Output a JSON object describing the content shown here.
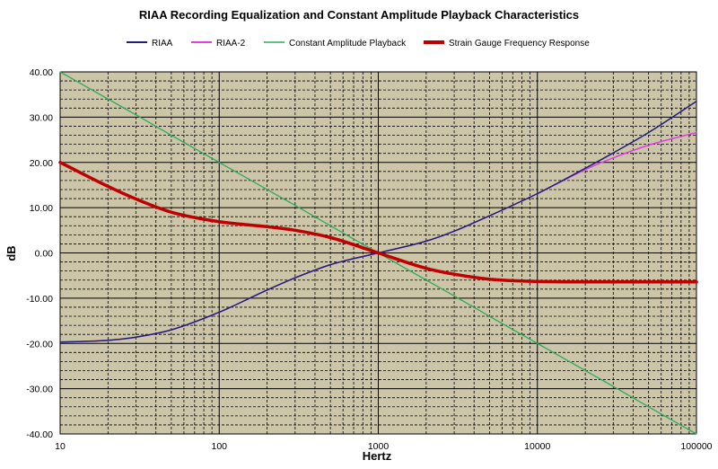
{
  "chart_data": {
    "type": "line",
    "title": "RIAA Recording Equalization and Constant Amplitude  Playback Characteristics",
    "xlabel": "Hertz",
    "ylabel": "dB",
    "x_scale": "log",
    "xlim": [
      10,
      100000
    ],
    "ylim": [
      -40,
      40
    ],
    "grid": true,
    "legend_position": "top",
    "plot_background": "#CCC5A8",
    "x_ticks": [
      "10",
      "100",
      "1000",
      "10000",
      "100000"
    ],
    "y_ticks": [
      "40.00",
      "30.00",
      "20.00",
      "10.00",
      "0.00",
      "-10.00",
      "-20.00",
      "-30.00",
      "-40.00"
    ],
    "x": [
      10,
      20,
      30,
      50,
      100,
      200,
      300,
      500,
      1000,
      2000,
      3000,
      5000,
      10000,
      20000,
      30000,
      50000,
      100000
    ],
    "series": [
      {
        "name": "RIAA",
        "color": "#1F1F7A",
        "values": [
          -19.7,
          -19.3,
          -18.6,
          -17.0,
          -13.1,
          -8.2,
          -5.5,
          -2.6,
          0.0,
          2.6,
          4.8,
          8.2,
          13.1,
          18.7,
          22.1,
          26.6,
          33.5
        ]
      },
      {
        "name": "RIAA-2",
        "color": "#E040E0",
        "values": [
          -19.7,
          -19.3,
          -18.6,
          -17.0,
          -13.1,
          -8.2,
          -5.5,
          -2.6,
          0.0,
          2.6,
          4.8,
          8.2,
          13.1,
          18.4,
          21.0,
          23.8,
          26.6
        ]
      },
      {
        "name": "Constant Amplitude Playback",
        "color": "#2EAA5C",
        "values": [
          40.0,
          34.0,
          30.5,
          26.0,
          20.0,
          14.0,
          10.5,
          6.0,
          0.0,
          -6.0,
          -9.5,
          -14.0,
          -20.0,
          -26.0,
          -29.5,
          -34.0,
          -40.0
        ]
      },
      {
        "name": "Strain Gauge Frequency Response",
        "color": "#C00000",
        "values": [
          20.0,
          14.7,
          11.9,
          9.0,
          6.9,
          5.8,
          5.0,
          3.4,
          0.0,
          -3.4,
          -4.7,
          -5.8,
          -6.3,
          -6.4,
          -6.4,
          -6.4,
          -6.4
        ]
      }
    ]
  }
}
